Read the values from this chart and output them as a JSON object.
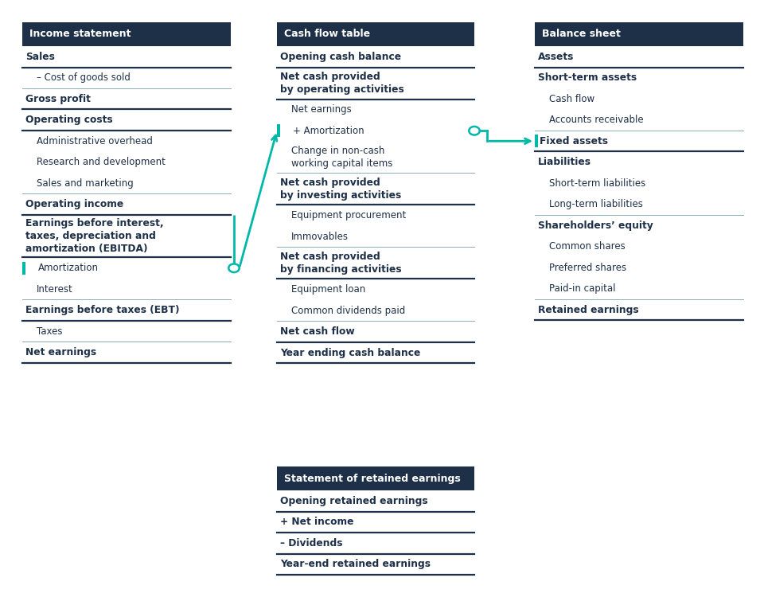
{
  "bg_color": "#ffffff",
  "header_bg": "#1e3048",
  "header_fg": "#ffffff",
  "teal": "#00b8a8",
  "text_color": "#1e3048",
  "bold_line_color": "#1e3048",
  "thin_line_color": "#8aabb8",
  "panels": [
    {
      "id": "income",
      "title": "Income statement",
      "col": 0,
      "items": [
        {
          "text": "Sales",
          "bold": true,
          "indent": 0,
          "line_below": true,
          "line_bold": true
        },
        {
          "text": "– Cost of goods sold",
          "bold": false,
          "indent": 1,
          "line_below": true,
          "line_bold": false
        },
        {
          "text": "Gross profit",
          "bold": true,
          "indent": 0,
          "line_below": true,
          "line_bold": true
        },
        {
          "text": "Operating costs",
          "bold": true,
          "indent": 0,
          "line_below": true,
          "line_bold": true
        },
        {
          "text": "Administrative overhead",
          "bold": false,
          "indent": 1,
          "line_below": false,
          "line_bold": false
        },
        {
          "text": "Research and development",
          "bold": false,
          "indent": 1,
          "line_below": false,
          "line_bold": false
        },
        {
          "text": "Sales and marketing",
          "bold": false,
          "indent": 1,
          "line_below": true,
          "line_bold": false
        },
        {
          "text": "Operating income",
          "bold": true,
          "indent": 0,
          "line_below": true,
          "line_bold": true
        },
        {
          "text": "Earnings before interest,\ntaxes, depreciation and\namortization (EBITDA)",
          "bold": true,
          "indent": 0,
          "line_below": true,
          "line_bold": true,
          "nlines": 3
        },
        {
          "text": "Amortization",
          "bold": false,
          "indent": 1,
          "line_below": false,
          "line_bold": false,
          "highlight": true,
          "tag": "p1_amor"
        },
        {
          "text": "Interest",
          "bold": false,
          "indent": 1,
          "line_below": true,
          "line_bold": false
        },
        {
          "text": "Earnings before taxes (EBT)",
          "bold": true,
          "indent": 0,
          "line_below": true,
          "line_bold": true
        },
        {
          "text": "Taxes",
          "bold": false,
          "indent": 1,
          "line_below": true,
          "line_bold": false
        },
        {
          "text": "Net earnings",
          "bold": true,
          "indent": 0,
          "line_below": true,
          "line_bold": true
        }
      ]
    },
    {
      "id": "cashflow",
      "title": "Cash flow table",
      "col": 1,
      "items": [
        {
          "text": "Opening cash balance",
          "bold": true,
          "indent": 0,
          "line_below": true,
          "line_bold": true
        },
        {
          "text": "Net cash provided\nby operating activities",
          "bold": true,
          "indent": 0,
          "line_below": true,
          "line_bold": true,
          "nlines": 2
        },
        {
          "text": "Net earnings",
          "bold": false,
          "indent": 1,
          "line_below": false,
          "line_bold": false
        },
        {
          "text": "+ Amortization",
          "bold": false,
          "indent": 1,
          "line_below": false,
          "line_bold": false,
          "highlight": true,
          "tag": "p2_amor"
        },
        {
          "text": "Change in non-cash\nworking capital items",
          "bold": false,
          "indent": 1,
          "line_below": true,
          "line_bold": false,
          "nlines": 2
        },
        {
          "text": "Net cash provided\nby investing activities",
          "bold": true,
          "indent": 0,
          "line_below": true,
          "line_bold": true,
          "nlines": 2
        },
        {
          "text": "Equipment procurement",
          "bold": false,
          "indent": 1,
          "line_below": false,
          "line_bold": false
        },
        {
          "text": "Immovables",
          "bold": false,
          "indent": 1,
          "line_below": true,
          "line_bold": false
        },
        {
          "text": "Net cash provided\nby financing activities",
          "bold": true,
          "indent": 0,
          "line_below": true,
          "line_bold": true,
          "nlines": 2
        },
        {
          "text": "Equipment loan",
          "bold": false,
          "indent": 1,
          "line_below": false,
          "line_bold": false
        },
        {
          "text": "Common dividends paid",
          "bold": false,
          "indent": 1,
          "line_below": true,
          "line_bold": false
        },
        {
          "text": "Net cash flow",
          "bold": true,
          "indent": 0,
          "line_below": true,
          "line_bold": true
        },
        {
          "text": "Year ending cash balance",
          "bold": true,
          "indent": 0,
          "line_below": true,
          "line_bold": true
        }
      ]
    },
    {
      "id": "balance",
      "title": "Balance sheet",
      "col": 2,
      "items": [
        {
          "text": "Assets",
          "bold": true,
          "indent": 0,
          "line_below": true,
          "line_bold": true
        },
        {
          "text": "Short-term assets",
          "bold": true,
          "indent": 0,
          "line_below": false,
          "line_bold": false
        },
        {
          "text": "Cash flow",
          "bold": false,
          "indent": 1,
          "line_below": false,
          "line_bold": false
        },
        {
          "text": "Accounts receivable",
          "bold": false,
          "indent": 1,
          "line_below": true,
          "line_bold": false
        },
        {
          "text": "Fixed assets",
          "bold": true,
          "indent": 0,
          "line_below": true,
          "line_bold": true,
          "highlight": true,
          "tag": "p3_fixed"
        },
        {
          "text": "Liabilities",
          "bold": true,
          "indent": 0,
          "line_below": false,
          "line_bold": false
        },
        {
          "text": "Short-term liabilities",
          "bold": false,
          "indent": 1,
          "line_below": false,
          "line_bold": false
        },
        {
          "text": "Long-term liabilities",
          "bold": false,
          "indent": 1,
          "line_below": true,
          "line_bold": false
        },
        {
          "text": "Shareholders’ equity",
          "bold": true,
          "indent": 0,
          "line_below": false,
          "line_bold": false
        },
        {
          "text": "Common shares",
          "bold": false,
          "indent": 1,
          "line_below": false,
          "line_bold": false
        },
        {
          "text": "Preferred shares",
          "bold": false,
          "indent": 1,
          "line_below": false,
          "line_bold": false
        },
        {
          "text": "Paid-in capital",
          "bold": false,
          "indent": 1,
          "line_below": true,
          "line_bold": false
        },
        {
          "text": "Retained earnings",
          "bold": true,
          "indent": 0,
          "line_below": true,
          "line_bold": true
        }
      ]
    },
    {
      "id": "retained",
      "title": "Statement of retained earnings",
      "col": 1,
      "row": "bottom",
      "items": [
        {
          "text": "Opening retained earnings",
          "bold": true,
          "indent": 0,
          "line_below": true,
          "line_bold": true
        },
        {
          "text": "+ Net income",
          "bold": true,
          "indent": 0,
          "line_below": true,
          "line_bold": true
        },
        {
          "text": "– Dividends",
          "bold": true,
          "indent": 0,
          "line_below": true,
          "line_bold": true
        },
        {
          "text": "Year-end retained earnings",
          "bold": true,
          "indent": 0,
          "line_below": true,
          "line_bold": true
        }
      ]
    }
  ]
}
